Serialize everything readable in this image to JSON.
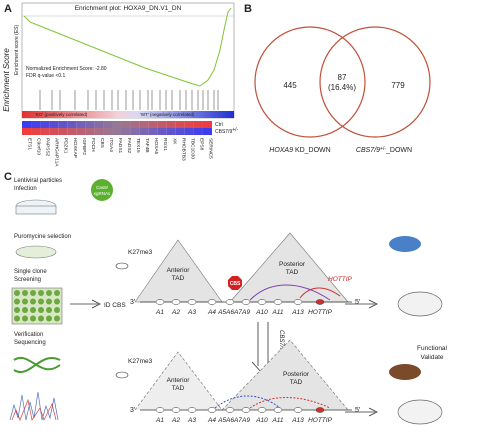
{
  "panel_a": {
    "letter": "A",
    "title": "Enrichment plot: HOXA9_DN.V1_DN",
    "y_label_outer": "Enrichment Score",
    "y_label_inner": "Enrichment score (ES)",
    "nes": "Normalized Enrichment Score: -2.80",
    "fdr": "FDR q-value <0.1",
    "ko_label": "'KO' (positively correlated)",
    "wt_label": "'WT' (negatively correlated)",
    "row_ctrl": "Ctrl",
    "row_mut": {
      "base": "CBS7/9",
      "sup": "+/-"
    },
    "genes": [
      "ETS1",
      "C9orf10",
      "PAPSS2",
      "ARHGAP11A",
      "PDZK1",
      "HOXKAP",
      "IGFBP2",
      "FOCH",
      "CBS",
      "ITGA4",
      "FADS1",
      "FADS2",
      "TEX15",
      "TAF4B",
      "HOXA5",
      "RGS1",
      "XK",
      "RHOBTB3",
      "TBC1D30",
      "EPS8",
      "SERINC5"
    ]
  },
  "panel_b": {
    "letter": "B",
    "left_only": 445,
    "overlap": 87,
    "overlap_pct": "(16.4%)",
    "right_only": 779,
    "left_label": {
      "italic": "HOXA9",
      "rest": " KD_DOWN"
    },
    "right_label": {
      "italic": "CBS7/9",
      "sup": "+/-",
      "rest": "_DOWN"
    }
  },
  "panel_c": {
    "letter": "C",
    "step1": [
      "Lentiviral particles",
      "Infection"
    ],
    "cas9": [
      "Cas9/",
      "sgRNAs"
    ],
    "step2": "Puromycine selection",
    "step3": [
      "Single clone",
      "Screening"
    ],
    "step4": [
      "Verification",
      "Sequencing"
    ],
    "id_cbs": "ID CBS",
    "k27": "K27me3",
    "anterior": [
      "Anterior",
      "TAD"
    ],
    "posterior": [
      "Posterior",
      "TAD"
    ],
    "cbs": "CBS",
    "hottip": "HOTTIP",
    "end3": "3'",
    "end5": "5'",
    "genes": [
      "A1",
      "A2",
      "A3",
      "A4",
      "A5A6A7",
      "A9",
      "A10",
      "A11",
      "A13",
      "HOTTIP"
    ],
    "mutation": {
      "base": "CBS7/9",
      "sup": "+/-"
    },
    "validate": [
      "Functional",
      "Validate"
    ]
  }
}
